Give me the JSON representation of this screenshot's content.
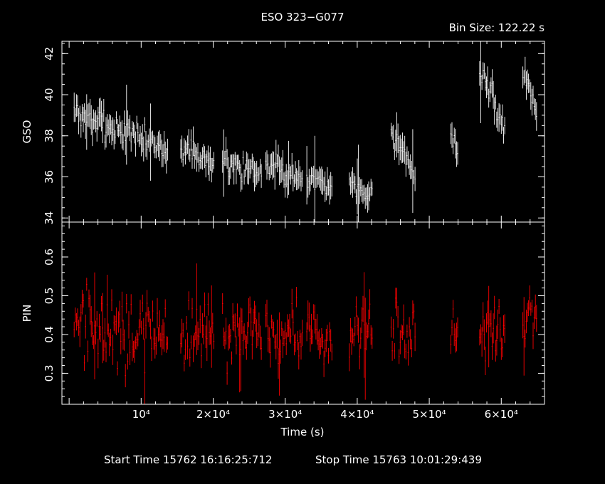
{
  "title": "ESO 323−G077",
  "bin_size": "Bin Size: 122.22 s",
  "footer": {
    "start": "Start Time 15762 16:16:25:712",
    "stop": "Stop Time 15763 10:01:29:439"
  },
  "colors": {
    "background": "#000000",
    "gso": "#ffffff",
    "pin": "#ff0000",
    "axes": "#ffffff"
  },
  "chart_data": [
    {
      "type": "scatter",
      "panel": "top",
      "ylabel": "GSO",
      "xlim": [
        -1000,
        66000
      ],
      "ylim": [
        33.8,
        42.6
      ],
      "yticks": [
        34,
        36,
        38,
        40,
        42
      ],
      "segments": [
        {
          "x_start": 700,
          "x_end": 13800,
          "y_start": 39.2,
          "y_end": 37.3,
          "noise": 0.7
        },
        {
          "x_start": 15500,
          "x_end": 20200,
          "y_start": 37.4,
          "y_end": 36.6,
          "noise": 0.6
        },
        {
          "x_start": 21300,
          "x_end": 26800,
          "y_start": 36.7,
          "y_end": 36.2,
          "noise": 0.6
        },
        {
          "x_start": 27300,
          "x_end": 32400,
          "y_start": 36.7,
          "y_end": 35.9,
          "noise": 0.6
        },
        {
          "x_start": 33000,
          "x_end": 36500,
          "y_start": 36.0,
          "y_end": 35.5,
          "noise": 0.5
        },
        {
          "x_start": 38900,
          "x_end": 42200,
          "y_start": 35.8,
          "y_end": 35.0,
          "noise": 0.6
        },
        {
          "x_start": 44700,
          "x_end": 48100,
          "y_start": 38.3,
          "y_end": 35.9,
          "noise": 0.6
        },
        {
          "x_start": 53000,
          "x_end": 54000,
          "y_start": 38.3,
          "y_end": 37.0,
          "noise": 0.5
        },
        {
          "x_start": 57000,
          "x_end": 60500,
          "y_start": 41.3,
          "y_end": 38.3,
          "noise": 0.6
        },
        {
          "x_start": 63000,
          "x_end": 65000,
          "y_start": 41.2,
          "y_end": 39.3,
          "noise": 0.5
        }
      ]
    },
    {
      "type": "scatter",
      "panel": "bottom",
      "xlabel": "Time (s)",
      "ylabel": "PIN",
      "xlim": [
        -1000,
        66000
      ],
      "ylim": [
        0.22,
        0.69
      ],
      "yticks": [
        0.3,
        0.4,
        0.5,
        0.6
      ],
      "xticks": [
        {
          "value": 10000,
          "label": "10⁴"
        },
        {
          "value": 20000,
          "label": "2×10⁴"
        },
        {
          "value": 30000,
          "label": "3×10⁴"
        },
        {
          "value": 40000,
          "label": "4×10⁴"
        },
        {
          "value": 50000,
          "label": "5×10⁴"
        },
        {
          "value": 60000,
          "label": "6×10⁴"
        }
      ],
      "segments": [
        {
          "x_start": 700,
          "x_end": 13800,
          "y_start": 0.42,
          "y_end": 0.4,
          "noise": 0.09
        },
        {
          "x_start": 15500,
          "x_end": 20200,
          "y_start": 0.41,
          "y_end": 0.4,
          "noise": 0.08
        },
        {
          "x_start": 21300,
          "x_end": 26800,
          "y_start": 0.4,
          "y_end": 0.4,
          "noise": 0.08
        },
        {
          "x_start": 27300,
          "x_end": 32400,
          "y_start": 0.4,
          "y_end": 0.4,
          "noise": 0.08
        },
        {
          "x_start": 33000,
          "x_end": 36500,
          "y_start": 0.39,
          "y_end": 0.39,
          "noise": 0.08
        },
        {
          "x_start": 38900,
          "x_end": 42200,
          "y_start": 0.4,
          "y_end": 0.41,
          "noise": 0.07
        },
        {
          "x_start": 44700,
          "x_end": 48100,
          "y_start": 0.4,
          "y_end": 0.42,
          "noise": 0.08
        },
        {
          "x_start": 53000,
          "x_end": 54000,
          "y_start": 0.42,
          "y_end": 0.42,
          "noise": 0.06
        },
        {
          "x_start": 57000,
          "x_end": 60500,
          "y_start": 0.42,
          "y_end": 0.42,
          "noise": 0.07
        },
        {
          "x_start": 63000,
          "x_end": 65000,
          "y_start": 0.43,
          "y_end": 0.43,
          "noise": 0.07
        }
      ]
    }
  ]
}
